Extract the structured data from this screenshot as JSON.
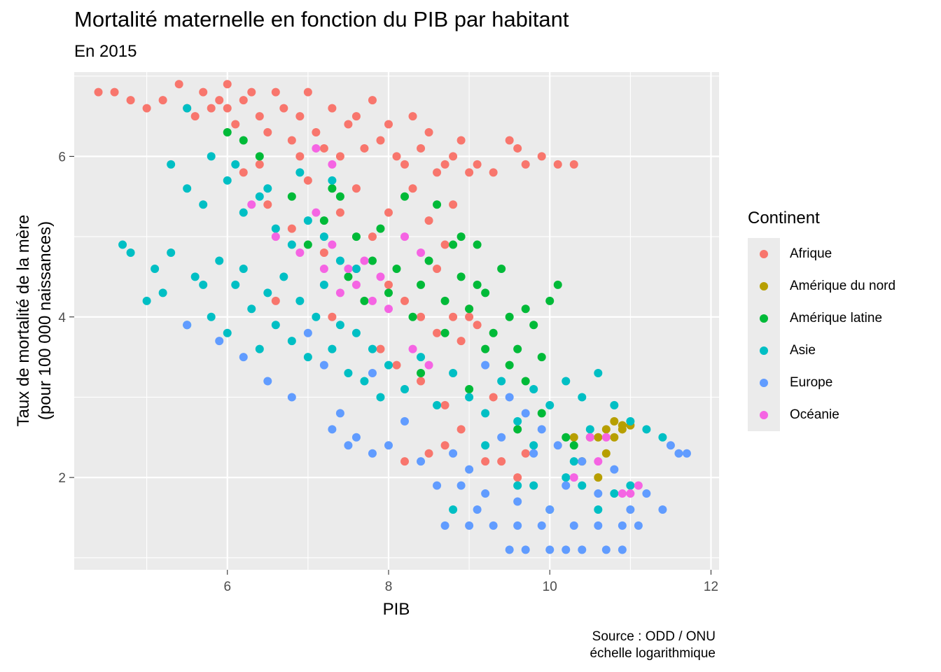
{
  "chart_data": {
    "type": "scatter",
    "title": "Mortalité maternelle en fonction du PIB par habitant",
    "subtitle": "En 2015",
    "xlabel": "PIB",
    "ylabel": [
      "Taux de mortalité de la mère",
      "(pour 100 000 naissances)"
    ],
    "caption": [
      "Source : ODD / ONU",
      "échelle logarithmique"
    ],
    "xlim": [
      4.1,
      12.1
    ],
    "ylim": [
      0.85,
      7.05
    ],
    "x_ticks": [
      6,
      8,
      10,
      12
    ],
    "y_ticks": [
      2,
      4,
      6
    ],
    "x_tick_labels": [
      "6",
      "8",
      "10",
      "12"
    ],
    "y_tick_labels": [
      "2",
      "4",
      "6"
    ],
    "grid": true,
    "legend": {
      "title": "Continent",
      "position": "right"
    },
    "series": [
      {
        "name": "Afrique",
        "color": "#F8766D",
        "points": [
          [
            4.4,
            6.8
          ],
          [
            4.6,
            6.8
          ],
          [
            4.8,
            6.7
          ],
          [
            5.0,
            6.6
          ],
          [
            5.2,
            6.7
          ],
          [
            5.4,
            6.9
          ],
          [
            5.5,
            6.6
          ],
          [
            5.6,
            6.5
          ],
          [
            5.7,
            6.8
          ],
          [
            5.8,
            6.6
          ],
          [
            5.9,
            6.7
          ],
          [
            6.0,
            6.6
          ],
          [
            6.0,
            6.9
          ],
          [
            6.1,
            6.4
          ],
          [
            6.2,
            6.7
          ],
          [
            6.3,
            6.8
          ],
          [
            6.4,
            6.5
          ],
          [
            6.5,
            6.3
          ],
          [
            6.6,
            6.8
          ],
          [
            6.7,
            6.6
          ],
          [
            6.8,
            6.2
          ],
          [
            6.9,
            6.5
          ],
          [
            7.0,
            6.8
          ],
          [
            7.1,
            6.3
          ],
          [
            7.2,
            6.1
          ],
          [
            7.3,
            6.6
          ],
          [
            7.4,
            6.0
          ],
          [
            7.5,
            6.4
          ],
          [
            7.6,
            6.5
          ],
          [
            7.7,
            6.1
          ],
          [
            7.8,
            6.7
          ],
          [
            7.9,
            6.2
          ],
          [
            8.0,
            6.4
          ],
          [
            8.1,
            6.0
          ],
          [
            8.2,
            5.9
          ],
          [
            8.3,
            6.5
          ],
          [
            8.4,
            6.1
          ],
          [
            8.5,
            6.3
          ],
          [
            8.6,
            5.8
          ],
          [
            8.7,
            5.9
          ],
          [
            8.8,
            6.0
          ],
          [
            8.9,
            6.2
          ],
          [
            9.0,
            5.8
          ],
          [
            9.1,
            5.9
          ],
          [
            9.3,
            5.8
          ],
          [
            9.5,
            6.2
          ],
          [
            9.6,
            6.1
          ],
          [
            9.7,
            5.9
          ],
          [
            9.9,
            6.0
          ],
          [
            10.1,
            5.9
          ],
          [
            10.3,
            5.9
          ],
          [
            6.2,
            5.8
          ],
          [
            6.5,
            5.4
          ],
          [
            6.8,
            5.1
          ],
          [
            7.0,
            5.7
          ],
          [
            7.2,
            4.8
          ],
          [
            7.4,
            5.3
          ],
          [
            7.6,
            4.6
          ],
          [
            7.8,
            5.0
          ],
          [
            8.0,
            4.4
          ],
          [
            8.2,
            4.2
          ],
          [
            8.4,
            4.0
          ],
          [
            8.6,
            3.8
          ],
          [
            8.8,
            4.0
          ],
          [
            8.9,
            3.7
          ],
          [
            9.0,
            4.1
          ],
          [
            9.1,
            3.9
          ],
          [
            8.3,
            5.6
          ],
          [
            8.5,
            5.2
          ],
          [
            8.7,
            4.9
          ],
          [
            8.8,
            5.4
          ],
          [
            7.9,
            3.6
          ],
          [
            8.1,
            3.4
          ],
          [
            8.4,
            3.2
          ],
          [
            8.7,
            2.9
          ],
          [
            8.9,
            2.6
          ],
          [
            9.2,
            2.2
          ],
          [
            9.4,
            2.2
          ],
          [
            9.6,
            2.0
          ],
          [
            8.2,
            2.2
          ],
          [
            8.5,
            2.3
          ],
          [
            8.7,
            2.4
          ],
          [
            7.3,
            4.0
          ],
          [
            6.6,
            4.2
          ],
          [
            6.4,
            5.9
          ],
          [
            6.9,
            6.0
          ],
          [
            7.6,
            5.6
          ],
          [
            8.0,
            5.3
          ],
          [
            8.6,
            4.6
          ],
          [
            9.0,
            4.0
          ],
          [
            9.3,
            3.0
          ],
          [
            9.7,
            2.3
          ]
        ]
      },
      {
        "name": "Amérique du nord",
        "color": "#B79F00",
        "points": [
          [
            10.3,
            2.5
          ],
          [
            10.4,
            2.2
          ],
          [
            10.5,
            2.5
          ],
          [
            10.6,
            2.5
          ],
          [
            10.6,
            2.0
          ],
          [
            10.7,
            2.6
          ],
          [
            10.7,
            2.3
          ],
          [
            10.8,
            2.7
          ],
          [
            10.8,
            2.5
          ],
          [
            10.9,
            2.6
          ],
          [
            10.9,
            2.65
          ],
          [
            11.0,
            2.65
          ]
        ]
      },
      {
        "name": "Amérique latine",
        "color": "#00BA38",
        "points": [
          [
            6.0,
            6.3
          ],
          [
            6.2,
            6.2
          ],
          [
            6.4,
            6.0
          ],
          [
            6.8,
            5.5
          ],
          [
            7.0,
            4.9
          ],
          [
            7.2,
            5.2
          ],
          [
            7.4,
            5.5
          ],
          [
            7.5,
            4.5
          ],
          [
            7.6,
            5.0
          ],
          [
            7.7,
            4.2
          ],
          [
            7.8,
            4.7
          ],
          [
            7.9,
            5.1
          ],
          [
            8.0,
            4.3
          ],
          [
            8.1,
            4.6
          ],
          [
            8.2,
            5.5
          ],
          [
            8.3,
            4.0
          ],
          [
            8.4,
            4.4
          ],
          [
            8.5,
            4.7
          ],
          [
            8.6,
            5.4
          ],
          [
            8.7,
            4.2
          ],
          [
            8.8,
            4.9
          ],
          [
            8.9,
            4.5
          ],
          [
            9.0,
            4.1
          ],
          [
            9.1,
            4.4
          ],
          [
            9.2,
            4.3
          ],
          [
            9.3,
            3.8
          ],
          [
            9.4,
            4.6
          ],
          [
            9.5,
            4.0
          ],
          [
            9.6,
            3.6
          ],
          [
            9.7,
            4.1
          ],
          [
            9.8,
            3.9
          ],
          [
            9.9,
            3.5
          ],
          [
            10.0,
            4.2
          ],
          [
            10.1,
            4.4
          ],
          [
            9.5,
            3.4
          ],
          [
            9.0,
            3.1
          ],
          [
            9.2,
            3.6
          ],
          [
            8.7,
            3.8
          ],
          [
            8.4,
            3.3
          ],
          [
            9.7,
            3.2
          ],
          [
            9.9,
            2.8
          ],
          [
            8.9,
            5.0
          ],
          [
            9.1,
            4.9
          ],
          [
            7.3,
            5.6
          ],
          [
            9.6,
            2.6
          ],
          [
            10.2,
            2.5
          ],
          [
            10.3,
            2.4
          ]
        ]
      },
      {
        "name": "Asie",
        "color": "#00BFC4",
        "points": [
          [
            4.7,
            4.9
          ],
          [
            4.8,
            4.8
          ],
          [
            5.0,
            4.2
          ],
          [
            5.1,
            4.6
          ],
          [
            5.2,
            4.3
          ],
          [
            5.3,
            4.8
          ],
          [
            5.5,
            3.9
          ],
          [
            5.6,
            4.5
          ],
          [
            5.7,
            4.4
          ],
          [
            5.8,
            4.0
          ],
          [
            5.9,
            4.7
          ],
          [
            6.0,
            3.8
          ],
          [
            6.1,
            4.4
          ],
          [
            6.2,
            4.6
          ],
          [
            6.3,
            4.1
          ],
          [
            6.4,
            3.6
          ],
          [
            6.5,
            4.3
          ],
          [
            6.6,
            3.9
          ],
          [
            6.7,
            4.5
          ],
          [
            6.8,
            3.7
          ],
          [
            6.9,
            4.2
          ],
          [
            7.0,
            3.5
          ],
          [
            7.1,
            4.0
          ],
          [
            7.2,
            4.4
          ],
          [
            7.3,
            3.6
          ],
          [
            7.4,
            3.9
          ],
          [
            7.5,
            3.3
          ],
          [
            7.6,
            3.8
          ],
          [
            7.7,
            3.2
          ],
          [
            7.8,
            3.6
          ],
          [
            7.9,
            3.0
          ],
          [
            8.0,
            3.4
          ],
          [
            8.2,
            3.1
          ],
          [
            8.4,
            3.5
          ],
          [
            8.6,
            2.9
          ],
          [
            8.8,
            3.3
          ],
          [
            9.0,
            3.0
          ],
          [
            9.2,
            2.8
          ],
          [
            9.4,
            3.2
          ],
          [
            9.6,
            2.7
          ],
          [
            9.8,
            3.1
          ],
          [
            10.0,
            2.9
          ],
          [
            10.2,
            3.2
          ],
          [
            10.4,
            3.0
          ],
          [
            10.6,
            3.3
          ],
          [
            10.8,
            2.9
          ],
          [
            11.0,
            2.7
          ],
          [
            11.2,
            2.6
          ],
          [
            11.4,
            2.5
          ],
          [
            5.3,
            5.9
          ],
          [
            5.5,
            5.6
          ],
          [
            5.7,
            5.4
          ],
          [
            6.0,
            5.7
          ],
          [
            6.2,
            5.3
          ],
          [
            6.4,
            5.5
          ],
          [
            6.6,
            5.1
          ],
          [
            6.8,
            4.9
          ],
          [
            7.0,
            5.2
          ],
          [
            7.2,
            5.0
          ],
          [
            7.4,
            4.7
          ],
          [
            7.6,
            4.6
          ],
          [
            5.5,
            6.6
          ],
          [
            5.8,
            6.0
          ],
          [
            6.1,
            5.9
          ],
          [
            6.5,
            5.6
          ],
          [
            6.9,
            5.8
          ],
          [
            7.3,
            5.7
          ],
          [
            10.2,
            2.0
          ],
          [
            10.4,
            1.9
          ],
          [
            10.6,
            1.6
          ],
          [
            10.8,
            1.8
          ],
          [
            11.0,
            1.9
          ],
          [
            9.8,
            1.9
          ],
          [
            10.0,
            1.6
          ],
          [
            8.8,
            1.6
          ],
          [
            9.6,
            1.9
          ],
          [
            9.2,
            2.4
          ],
          [
            9.8,
            2.4
          ],
          [
            10.3,
            2.2
          ],
          [
            10.5,
            2.6
          ]
        ]
      },
      {
        "name": "Europe",
        "color": "#619CFF",
        "points": [
          [
            5.5,
            3.9
          ],
          [
            5.9,
            3.7
          ],
          [
            6.2,
            3.5
          ],
          [
            6.5,
            3.2
          ],
          [
            6.8,
            3.0
          ],
          [
            7.0,
            3.8
          ],
          [
            7.2,
            3.4
          ],
          [
            7.4,
            2.8
          ],
          [
            7.6,
            2.5
          ],
          [
            7.8,
            3.3
          ],
          [
            8.0,
            2.4
          ],
          [
            8.2,
            2.7
          ],
          [
            8.4,
            2.2
          ],
          [
            8.6,
            1.9
          ],
          [
            8.8,
            2.3
          ],
          [
            9.0,
            2.1
          ],
          [
            9.2,
            1.8
          ],
          [
            9.4,
            2.5
          ],
          [
            9.6,
            1.7
          ],
          [
            9.8,
            2.3
          ],
          [
            10.0,
            1.6
          ],
          [
            10.2,
            1.9
          ],
          [
            10.4,
            2.2
          ],
          [
            10.6,
            1.8
          ],
          [
            10.8,
            2.1
          ],
          [
            11.0,
            1.6
          ],
          [
            11.2,
            1.8
          ],
          [
            11.4,
            1.6
          ],
          [
            11.6,
            2.3
          ],
          [
            9.5,
            1.1
          ],
          [
            9.7,
            1.1
          ],
          [
            10.0,
            1.1
          ],
          [
            10.2,
            1.1
          ],
          [
            10.4,
            1.1
          ],
          [
            10.7,
            1.1
          ],
          [
            10.9,
            1.1
          ],
          [
            9.3,
            1.4
          ],
          [
            9.6,
            1.4
          ],
          [
            9.9,
            1.4
          ],
          [
            10.3,
            1.4
          ],
          [
            10.6,
            1.4
          ],
          [
            10.9,
            1.4
          ],
          [
            11.1,
            1.4
          ],
          [
            8.7,
            1.4
          ],
          [
            9.1,
            1.6
          ],
          [
            7.3,
            2.6
          ],
          [
            7.5,
            2.4
          ],
          [
            7.8,
            2.3
          ],
          [
            9.2,
            3.4
          ],
          [
            9.5,
            3.0
          ],
          [
            9.7,
            2.8
          ],
          [
            9.9,
            2.6
          ],
          [
            10.1,
            2.4
          ],
          [
            11.5,
            2.4
          ],
          [
            11.7,
            2.3
          ],
          [
            8.9,
            1.9
          ],
          [
            9.0,
            1.4
          ]
        ]
      },
      {
        "name": "Océanie",
        "color": "#F564E3",
        "points": [
          [
            6.3,
            5.4
          ],
          [
            6.6,
            5.0
          ],
          [
            6.9,
            4.8
          ],
          [
            7.1,
            5.3
          ],
          [
            7.2,
            4.6
          ],
          [
            7.3,
            4.9
          ],
          [
            7.4,
            4.3
          ],
          [
            7.5,
            4.6
          ],
          [
            7.6,
            4.4
          ],
          [
            7.7,
            4.7
          ],
          [
            7.8,
            4.2
          ],
          [
            7.9,
            4.5
          ],
          [
            8.0,
            4.1
          ],
          [
            8.2,
            5.0
          ],
          [
            8.4,
            4.8
          ],
          [
            7.1,
            6.1
          ],
          [
            7.3,
            5.9
          ],
          [
            8.3,
            3.6
          ],
          [
            8.5,
            3.4
          ],
          [
            10.5,
            2.5
          ],
          [
            10.6,
            2.2
          ],
          [
            10.7,
            2.5
          ],
          [
            10.9,
            1.8
          ],
          [
            11.0,
            1.8
          ],
          [
            11.1,
            1.9
          ],
          [
            10.3,
            2.0
          ]
        ]
      }
    ]
  }
}
